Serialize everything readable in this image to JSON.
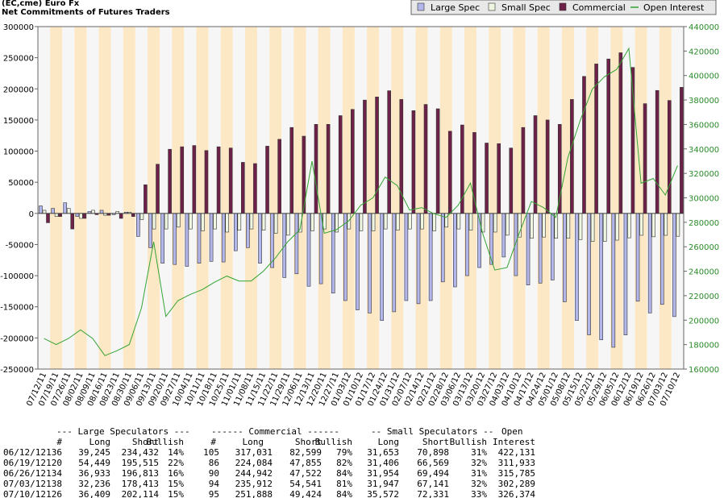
{
  "chart_data": {
    "type": "bar",
    "title": "(EC,cme) Euro Fx",
    "subtitle": "Net Commitments of Futures Traders",
    "categories": [
      "07/12/11",
      "07/19/11",
      "07/26/11",
      "08/02/11",
      "08/09/11",
      "08/16/11",
      "08/23/11",
      "08/30/11",
      "09/06/11",
      "09/13/11",
      "09/20/11",
      "09/27/11",
      "10/04/11",
      "10/11/11",
      "10/18/11",
      "10/25/11",
      "11/01/11",
      "11/08/11",
      "11/15/11",
      "11/22/11",
      "11/29/11",
      "12/06/11",
      "12/13/11",
      "12/20/11",
      "12/27/11",
      "01/03/12",
      "01/10/12",
      "01/17/12",
      "01/24/12",
      "01/31/12",
      "02/07/12",
      "02/14/12",
      "02/21/12",
      "02/28/12",
      "03/06/12",
      "03/13/12",
      "03/20/12",
      "03/27/12",
      "04/03/12",
      "04/10/12",
      "04/17/12",
      "04/24/12",
      "05/01/12",
      "05/08/12",
      "05/15/12",
      "05/22/12",
      "05/29/12",
      "06/05/12",
      "06/12/12",
      "06/19/12",
      "06/26/12",
      "07/03/12",
      "07/10/12"
    ],
    "series": [
      {
        "name": "Large Spec",
        "color": "#b3b6ea",
        "values": [
          12000,
          8000,
          17000,
          -5000,
          3000,
          5000,
          -2000,
          2000,
          -37000,
          -55000,
          -80000,
          -82000,
          -85000,
          -80000,
          -77000,
          -78000,
          -60000,
          -55000,
          -80000,
          -87000,
          -103000,
          -97000,
          -117000,
          -113000,
          -128000,
          -140000,
          -155000,
          -160000,
          -172000,
          -158000,
          -140000,
          -145000,
          -140000,
          -110000,
          -118000,
          -100000,
          -87000,
          -82000,
          -70000,
          -100000,
          -115000,
          -112000,
          -107000,
          -142000,
          -172000,
          -195000,
          -203000,
          -215000,
          -195187,
          -141066,
          -159880,
          -146177,
          -165705
        ]
      },
      {
        "name": "Small Spec",
        "color": "#eef6e2",
        "values": [
          5000,
          -5000,
          8000,
          -8000,
          5000,
          -3000,
          3000,
          2000,
          -10000,
          -25000,
          -25000,
          -22000,
          -25000,
          -28000,
          -25000,
          -30000,
          -27000,
          -25000,
          -27000,
          -32000,
          -35000,
          -30000,
          -28000,
          -25000,
          -30000,
          -25000,
          -28000,
          -28000,
          -25000,
          -27000,
          -25000,
          -25000,
          -28000,
          -22000,
          -25000,
          -27000,
          -30000,
          -30000,
          -35000,
          -38000,
          -40000,
          -38000,
          -40000,
          -40000,
          -42000,
          -45000,
          -45000,
          -43000,
          -39245,
          -35163,
          -37540,
          -35194,
          -36759
        ]
      },
      {
        "name": "Commercial",
        "color": "#6e2148",
        "values": [
          -15000,
          -5000,
          -25000,
          -8000,
          -2000,
          -3000,
          -8000,
          -5000,
          46000,
          79000,
          103000,
          107000,
          109000,
          101000,
          107000,
          105000,
          82000,
          80000,
          108000,
          119000,
          138000,
          124000,
          143000,
          143000,
          157000,
          167000,
          182000,
          187000,
          197000,
          183000,
          165000,
          175000,
          168000,
          132000,
          142000,
          130000,
          113000,
          112000,
          105000,
          138000,
          157000,
          150000,
          143000,
          183000,
          220000,
          240000,
          248000,
          258000,
          234432,
          176229,
          197420,
          181371,
          202464
        ]
      },
      {
        "name": "Open Interest",
        "color": "#33a333",
        "type": "line",
        "axis": "y2",
        "values": [
          185000,
          180000,
          185000,
          192000,
          185000,
          171000,
          175000,
          180000,
          210000,
          264000,
          203000,
          216000,
          221000,
          225000,
          231000,
          236000,
          232000,
          232000,
          240000,
          251000,
          264000,
          274000,
          330000,
          271000,
          274000,
          281000,
          294000,
          300000,
          317000,
          310000,
          290000,
          292000,
          287000,
          284000,
          294000,
          312000,
          271000,
          241000,
          243000,
          271000,
          297000,
          292000,
          284000,
          333000,
          363000,
          389000,
          399000,
          405000,
          422131,
          311933,
          315785,
          302289,
          326374
        ]
      }
    ],
    "ylim": [
      -250000,
      300000
    ],
    "yticks": [
      -250000,
      -200000,
      -150000,
      -100000,
      -50000,
      0,
      50000,
      100000,
      150000,
      200000,
      250000,
      300000
    ],
    "y2lim": [
      160000,
      440000
    ],
    "y2ticks": [
      160000,
      180000,
      200000,
      220000,
      240000,
      260000,
      280000,
      300000,
      320000,
      340000,
      360000,
      380000,
      400000,
      420000,
      440000
    ],
    "grid": false,
    "legend": "top-right"
  },
  "table": {
    "group_headers": [
      "--- Large Speculators ---",
      "------ Commercial ------",
      "-- Small Speculators --",
      "Open"
    ],
    "columns": [
      "#",
      "Long",
      "Short",
      "Bullish",
      "#",
      "Long",
      "Short",
      "Bullish",
      "Long",
      "Short",
      "Bullish",
      "Interest"
    ],
    "rows": [
      [
        "06/12/12",
        "136",
        "39,245",
        "234,432",
        "14%",
        "105",
        "317,031",
        "82,599",
        "79%",
        "31,653",
        "70,898",
        "31%",
        "422,131"
      ],
      [
        "06/19/12",
        "120",
        "54,449",
        "195,515",
        "22%",
        "86",
        "224,084",
        "47,855",
        "82%",
        "31,406",
        "66,569",
        "32%",
        "311,933"
      ],
      [
        "06/26/12",
        "134",
        "36,933",
        "196,813",
        "16%",
        "90",
        "244,942",
        "47,522",
        "84%",
        "31,954",
        "69,494",
        "31%",
        "315,785"
      ],
      [
        "07/03/12",
        "138",
        "32,236",
        "178,413",
        "15%",
        "94",
        "235,912",
        "54,541",
        "81%",
        "31,947",
        "67,141",
        "32%",
        "302,289"
      ],
      [
        "07/10/12",
        "126",
        "36,409",
        "202,114",
        "15%",
        "95",
        "251,888",
        "49,424",
        "84%",
        "35,572",
        "72,331",
        "33%",
        "326,374"
      ]
    ]
  }
}
